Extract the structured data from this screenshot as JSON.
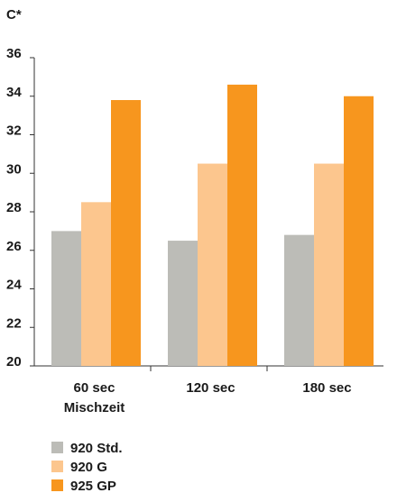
{
  "chart_data": {
    "type": "bar",
    "ylabel": "C*",
    "ylim": [
      20,
      36
    ],
    "yticks": [
      20,
      22,
      24,
      26,
      28,
      30,
      32,
      34,
      36
    ],
    "categories": [
      "60 sec",
      "120 sec",
      "180 sec"
    ],
    "category_sublabels": [
      "Mischzeit",
      "",
      ""
    ],
    "series": [
      {
        "name": "920 Std.",
        "color": "#bcbcb7",
        "values": [
          27.0,
          26.5,
          26.8
        ]
      },
      {
        "name": "920 G",
        "color": "#fcc68e",
        "values": [
          28.5,
          30.5,
          30.5
        ]
      },
      {
        "name": "925 GP",
        "color": "#f7961e",
        "values": [
          33.8,
          34.6,
          34.0
        ]
      }
    ],
    "grid": false,
    "legend_position": "bottom-left"
  }
}
